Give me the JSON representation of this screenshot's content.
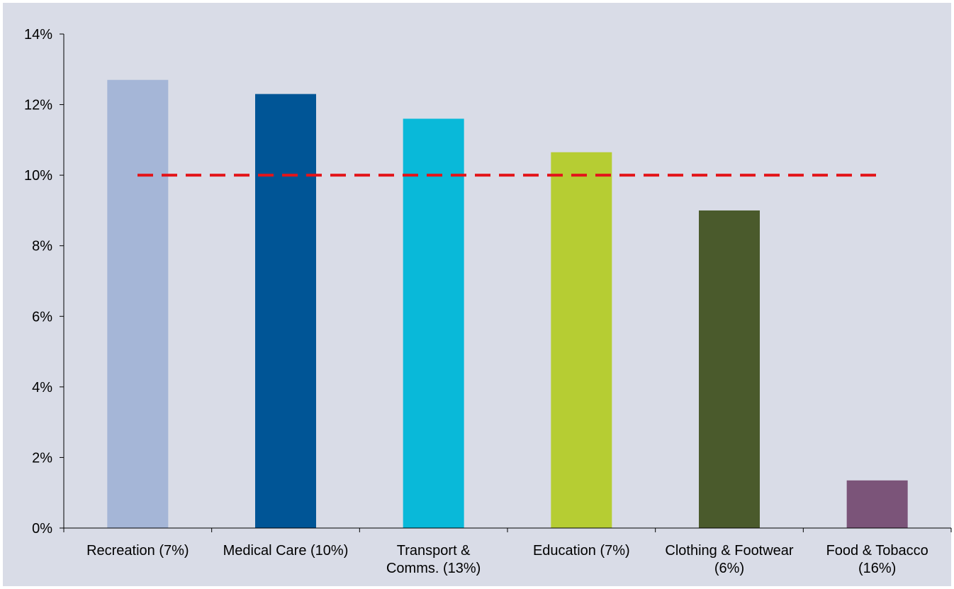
{
  "chart_data": {
    "type": "bar",
    "title": "",
    "xlabel": "",
    "ylabel": "",
    "ylim": [
      0,
      14
    ],
    "yticks": [
      "0%",
      "2%",
      "4%",
      "6%",
      "8%",
      "10%",
      "12%",
      "14%"
    ],
    "ytick_values": [
      0,
      2,
      4,
      6,
      8,
      10,
      12,
      14
    ],
    "categories": [
      [
        "Recreation (7%)"
      ],
      [
        "Medical Care (10%)"
      ],
      [
        "Transport &",
        "Comms. (13%)"
      ],
      [
        "Education (7%)"
      ],
      [
        "Clothing & Footwear",
        "(6%)"
      ],
      [
        "Food & Tobacco",
        "(16%)"
      ]
    ],
    "values": [
      12.7,
      12.3,
      11.6,
      10.65,
      9.0,
      1.35
    ],
    "bar_colors": [
      "#a5b6d7",
      "#005596",
      "#09b9d9",
      "#b6cd33",
      "#4a5a2c",
      "#7b5479"
    ],
    "reference_line": {
      "value": 10,
      "color": "#e3151a",
      "style": "dashed"
    },
    "grid": false,
    "legend": "none"
  }
}
